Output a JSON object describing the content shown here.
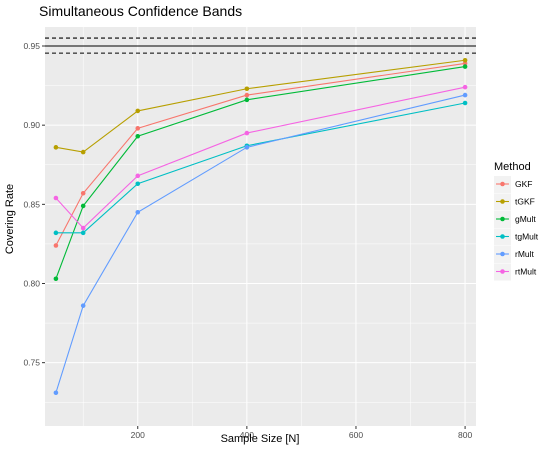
{
  "chart_data": {
    "type": "line",
    "title": "Simultaneous Confidence Bands",
    "xlabel": "Sample Size [N]",
    "ylabel": "Covering Rate",
    "x": [
      50,
      100,
      200,
      400,
      800
    ],
    "xlim": [
      30,
      820
    ],
    "ylim": [
      0.71,
      0.962
    ],
    "xticks": [
      200,
      400,
      600,
      800
    ],
    "xtick_labels": [
      "200",
      "400",
      "600",
      "800"
    ],
    "yticks": [
      0.75,
      0.8,
      0.85,
      0.9,
      0.95
    ],
    "ytick_labels": [
      "0.75",
      "0.80",
      "0.85",
      "0.90",
      "0.95"
    ],
    "grid": true,
    "reference_lines": [
      {
        "y": 0.95,
        "style": "solid"
      },
      {
        "y": 0.955,
        "style": "dashed"
      },
      {
        "y": 0.9455,
        "style": "dashed"
      }
    ],
    "legend": {
      "title": "Method",
      "position": "right"
    },
    "series": [
      {
        "name": "GKF",
        "color": "#F8766D",
        "values": [
          0.824,
          0.857,
          0.898,
          0.919,
          0.939
        ]
      },
      {
        "name": "tGKF",
        "color": "#B79F00",
        "values": [
          0.886,
          0.883,
          0.909,
          0.923,
          0.941
        ]
      },
      {
        "name": "gMult",
        "color": "#00BA38",
        "values": [
          0.803,
          0.849,
          0.893,
          0.916,
          0.937
        ]
      },
      {
        "name": "tgMult",
        "color": "#00BFC4",
        "values": [
          0.832,
          0.832,
          0.863,
          0.887,
          0.914
        ]
      },
      {
        "name": "rMult",
        "color": "#619CFF",
        "values": [
          0.731,
          0.786,
          0.845,
          0.886,
          0.919
        ]
      },
      {
        "name": "rtMult",
        "color": "#F564E3",
        "values": [
          0.854,
          0.835,
          0.868,
          0.895,
          0.924
        ]
      }
    ]
  }
}
